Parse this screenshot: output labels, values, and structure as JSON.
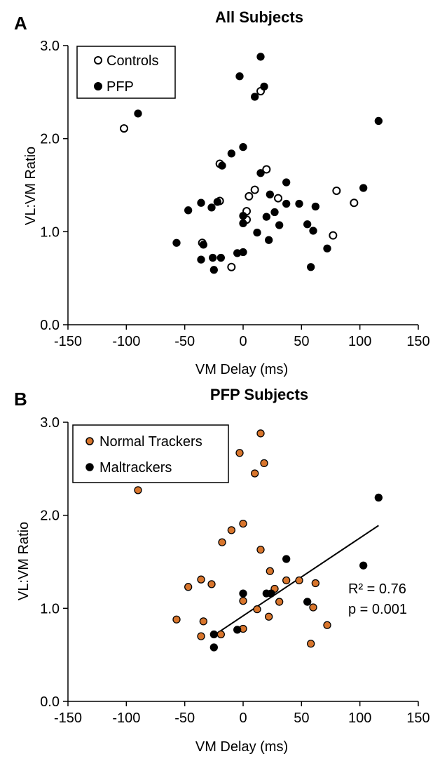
{
  "figure": {
    "panels": [
      "A",
      "B"
    ]
  },
  "chart_data": [
    {
      "type": "scatter",
      "panel_label": "A",
      "title": "All Subjects",
      "xlabel": "VM Delay (ms)",
      "ylabel": "VL:VM Ratio",
      "xlim": [
        -150,
        150
      ],
      "ylim": [
        0.0,
        3.0
      ],
      "xticks": [
        "-150",
        "-100",
        "-50",
        "0",
        "50",
        "100",
        "150"
      ],
      "yticks": [
        "0.0",
        "1.0",
        "2.0",
        "3.0"
      ],
      "xtick_values": [
        -150,
        -100,
        -50,
        0,
        50,
        100,
        150
      ],
      "ytick_values": [
        0,
        1,
        2,
        3
      ],
      "grid": false,
      "legend_position": "top-left",
      "series": [
        {
          "name": "Controls",
          "marker": "open-circle",
          "fill": "#ffffff",
          "stroke": "#000000",
          "points": [
            [
              -102,
              2.11
            ],
            [
              -20,
              1.73
            ],
            [
              20,
              1.67
            ],
            [
              -20,
              1.33
            ],
            [
              5,
              1.38
            ],
            [
              10,
              1.45
            ],
            [
              3,
              1.22
            ],
            [
              3,
              1.13
            ],
            [
              -35,
              0.88
            ],
            [
              -10,
              0.62
            ],
            [
              30,
              1.36
            ],
            [
              15,
              2.51
            ],
            [
              80,
              1.44
            ],
            [
              95,
              1.31
            ],
            [
              77,
              0.96
            ]
          ]
        },
        {
          "name": "PFP",
          "marker": "filled-circle",
          "fill": "#000000",
          "stroke": "#000000",
          "points": [
            [
              -90,
              2.27
            ],
            [
              -3,
              2.67
            ],
            [
              15,
              2.88
            ],
            [
              18,
              2.56
            ],
            [
              10,
              2.45
            ],
            [
              116,
              2.19
            ],
            [
              -10,
              1.84
            ],
            [
              0,
              1.91
            ],
            [
              -18,
              1.71
            ],
            [
              15,
              1.63
            ],
            [
              23,
              1.4
            ],
            [
              37,
              1.53
            ],
            [
              -47,
              1.23
            ],
            [
              -36,
              1.31
            ],
            [
              -27,
              1.26
            ],
            [
              -22,
              1.32
            ],
            [
              0,
              1.09
            ],
            [
              0,
              1.17
            ],
            [
              12,
              0.99
            ],
            [
              20,
              1.16
            ],
            [
              27,
              1.21
            ],
            [
              31,
              1.07
            ],
            [
              37,
              1.3
            ],
            [
              48,
              1.3
            ],
            [
              55,
              1.08
            ],
            [
              62,
              1.27
            ],
            [
              60,
              1.01
            ],
            [
              103,
              1.47
            ],
            [
              -57,
              0.88
            ],
            [
              -34,
              0.86
            ],
            [
              -36,
              0.7
            ],
            [
              -26,
              0.72
            ],
            [
              -19,
              0.72
            ],
            [
              -25,
              0.59
            ],
            [
              -5,
              0.77
            ],
            [
              0,
              0.78
            ],
            [
              22,
              0.91
            ],
            [
              72,
              0.82
            ],
            [
              58,
              0.62
            ]
          ]
        }
      ]
    },
    {
      "type": "scatter",
      "panel_label": "B",
      "title": "PFP Subjects",
      "xlabel": "VM Delay (ms)",
      "ylabel": "VL:VM Ratio",
      "xlim": [
        -150,
        150
      ],
      "ylim": [
        0.0,
        3.0
      ],
      "xticks": [
        "-150",
        "-100",
        "-50",
        "0",
        "50",
        "100",
        "150"
      ],
      "yticks": [
        "0.0",
        "1.0",
        "2.0",
        "3.0"
      ],
      "xtick_values": [
        -150,
        -100,
        -50,
        0,
        50,
        100,
        150
      ],
      "ytick_values": [
        0,
        1,
        2,
        3
      ],
      "grid": false,
      "legend_position": "top-left",
      "annotation": {
        "r2": "R² = 0.76",
        "p": "p = 0.001"
      },
      "trendline": {
        "x": [
          -25,
          116
        ],
        "y": [
          0.71,
          1.89
        ]
      },
      "series": [
        {
          "name": "Normal Trackers",
          "marker": "filled-circle",
          "fill": "#d8752c",
          "stroke": "#000000",
          "points": [
            [
              -90,
              2.27
            ],
            [
              -3,
              2.67
            ],
            [
              15,
              2.88
            ],
            [
              18,
              2.56
            ],
            [
              10,
              2.45
            ],
            [
              -10,
              1.84
            ],
            [
              0,
              1.91
            ],
            [
              -18,
              1.71
            ],
            [
              15,
              1.63
            ],
            [
              23,
              1.4
            ],
            [
              -47,
              1.23
            ],
            [
              -36,
              1.31
            ],
            [
              -27,
              1.26
            ],
            [
              0,
              1.08
            ],
            [
              12,
              0.99
            ],
            [
              27,
              1.21
            ],
            [
              31,
              1.07
            ],
            [
              37,
              1.3
            ],
            [
              48,
              1.3
            ],
            [
              62,
              1.27
            ],
            [
              60,
              1.01
            ],
            [
              -57,
              0.88
            ],
            [
              -34,
              0.86
            ],
            [
              -36,
              0.7
            ],
            [
              -19,
              0.72
            ],
            [
              0,
              0.78
            ],
            [
              22,
              0.91
            ],
            [
              72,
              0.82
            ],
            [
              58,
              0.62
            ]
          ]
        },
        {
          "name": "Maltrackers",
          "marker": "filled-circle",
          "fill": "#000000",
          "stroke": "#000000",
          "points": [
            [
              116,
              2.19
            ],
            [
              37,
              1.53
            ],
            [
              0,
              1.16
            ],
            [
              20,
              1.16
            ],
            [
              24,
              1.16
            ],
            [
              55,
              1.07
            ],
            [
              103,
              1.46
            ],
            [
              -25,
              0.72
            ],
            [
              -25,
              0.58
            ],
            [
              -5,
              0.77
            ]
          ]
        }
      ]
    }
  ]
}
